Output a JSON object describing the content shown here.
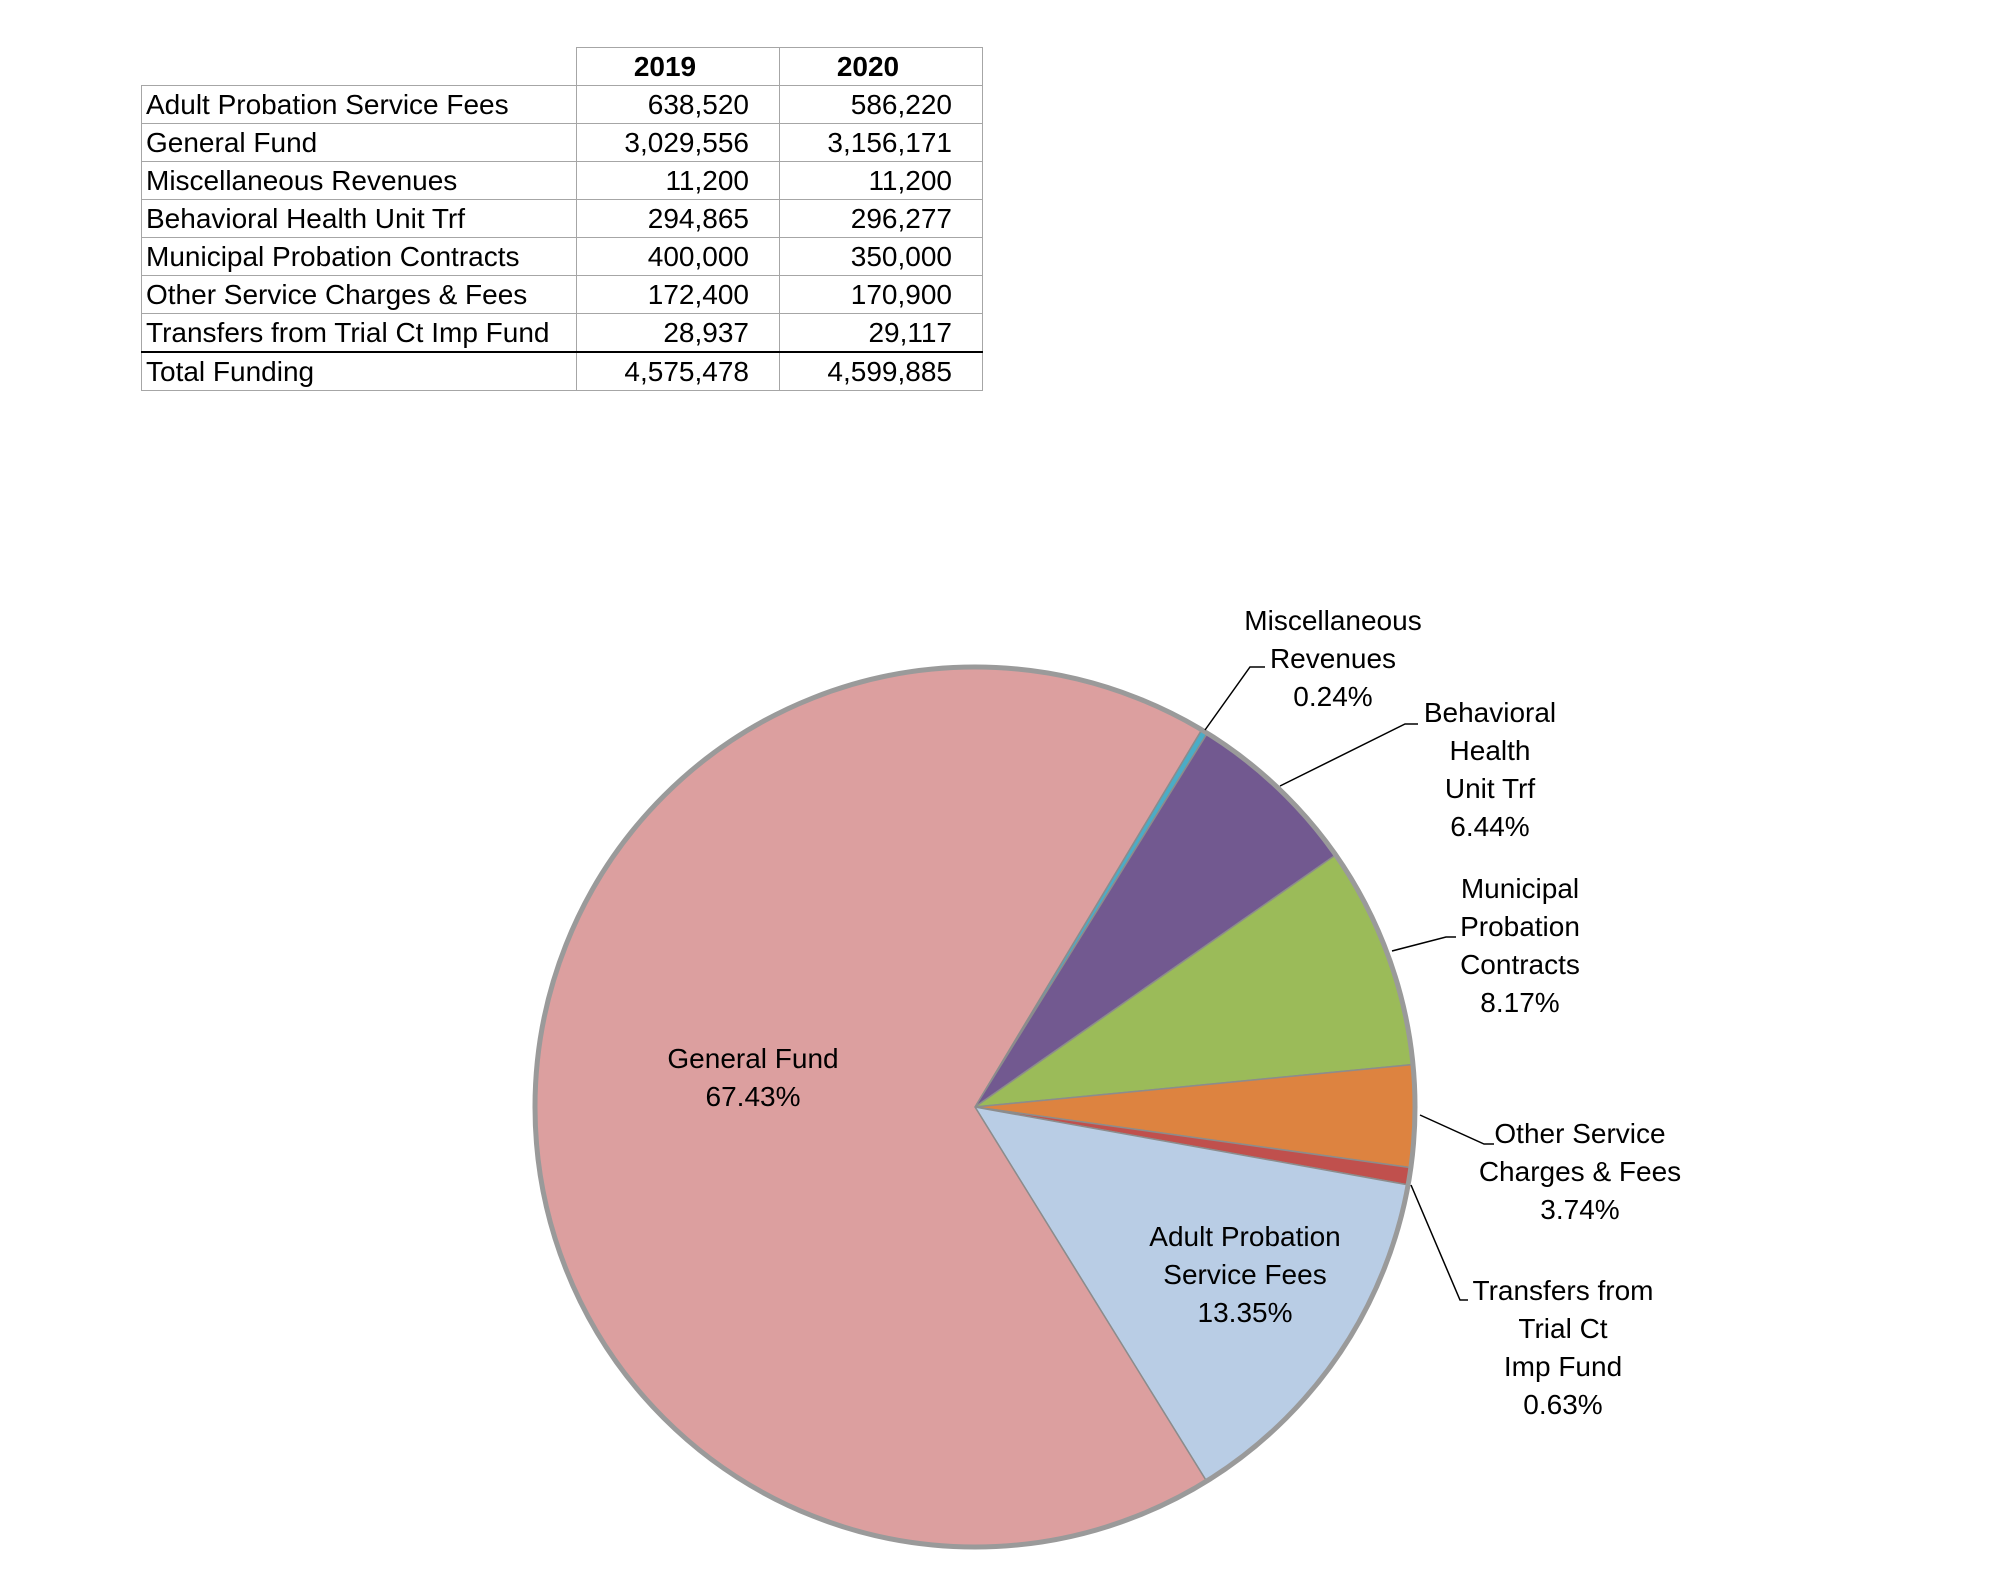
{
  "table": {
    "headers": [
      "",
      "2019",
      "2020"
    ],
    "rows": [
      {
        "label": "Adult Probation Service Fees",
        "y2019": "638,520",
        "y2020": "586,220"
      },
      {
        "label": "General Fund",
        "y2019": "3,029,556",
        "y2020": "3,156,171"
      },
      {
        "label": "Miscellaneous Revenues",
        "y2019": "11,200",
        "y2020": "11,200"
      },
      {
        "label": "Behavioral Health Unit Trf",
        "y2019": "294,865",
        "y2020": "296,277"
      },
      {
        "label": "Municipal Probation Contracts",
        "y2019": "400,000",
        "y2020": "350,000"
      },
      {
        "label": "Other Service Charges & Fees",
        "y2019": "172,400",
        "y2020": "170,900"
      },
      {
        "label": "Transfers from Trial Ct Imp Fund",
        "y2019": "28,937",
        "y2020": "29,117"
      }
    ],
    "total": {
      "label": "Total Funding",
      "y2019": "4,575,478",
      "y2020": "4,599,885"
    }
  },
  "chart_data": {
    "type": "pie",
    "title": "",
    "slices": [
      {
        "label_lines": [
          "Miscellaneous",
          "Revenues"
        ],
        "percent": "0.24%",
        "value": 0.24,
        "color": "#4bacc6"
      },
      {
        "label_lines": [
          "Behavioral",
          "Health",
          "Unit Trf"
        ],
        "percent": "6.44%",
        "value": 6.44,
        "color": "#725990"
      },
      {
        "label_lines": [
          "Municipal",
          "Probation",
          "Contracts"
        ],
        "percent": "8.17%",
        "value": 8.17,
        "color": "#9bbb59"
      },
      {
        "label_lines": [
          "Other Service",
          "Charges & Fees"
        ],
        "percent": "3.74%",
        "value": 3.74,
        "color": "#dd8340"
      },
      {
        "label_lines": [
          "Transfers from",
          "Trial Ct",
          "Imp Fund"
        ],
        "percent": "0.63%",
        "value": 0.63,
        "color": "#c0504d"
      },
      {
        "label_lines": [
          "Adult Probation",
          "Service Fees"
        ],
        "percent": "13.35%",
        "value": 13.35,
        "color": "#b9cde5"
      },
      {
        "label_lines": [
          "General Fund"
        ],
        "percent": "67.43%",
        "value": 67.43,
        "color": "#dc9f9f"
      }
    ],
    "legend": "none",
    "start_angle_degrees_clockwise_from_top": 31
  }
}
